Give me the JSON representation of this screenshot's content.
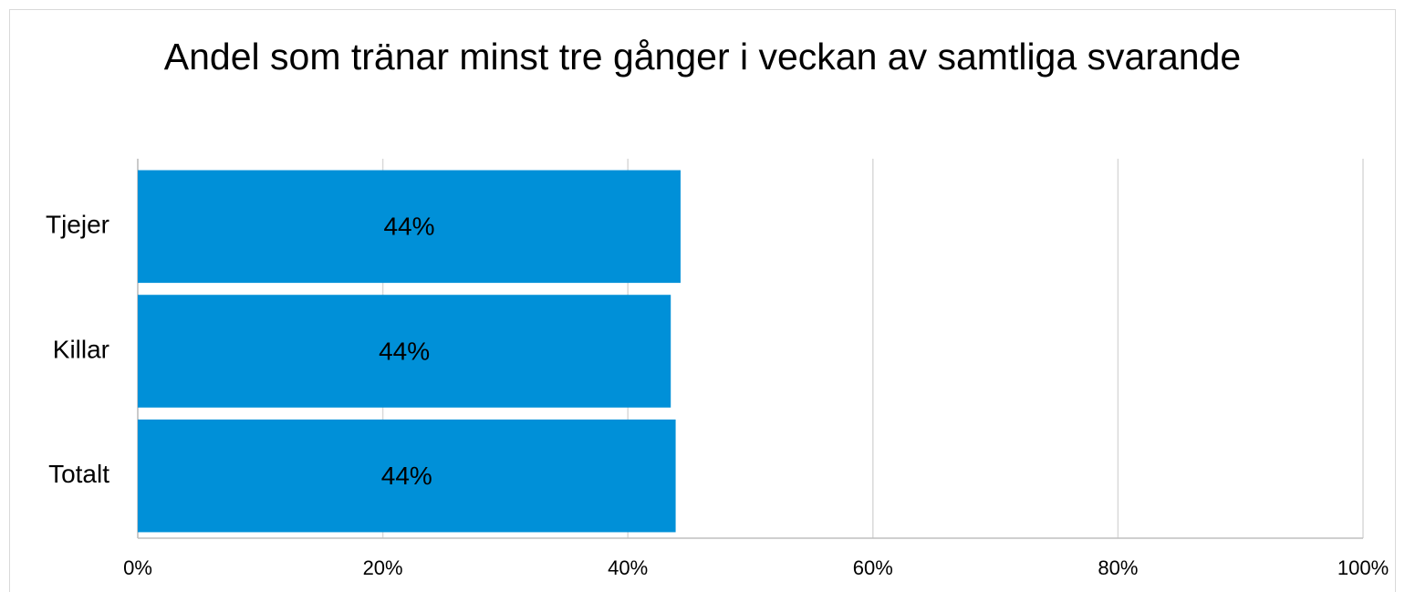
{
  "chart_data": {
    "type": "hbar",
    "title": "Andel som tränar minst tre gånger i veckan av samtliga svarande",
    "categories": [
      "Tjejer",
      "Killar",
      "Totalt"
    ],
    "values": [
      44.3,
      43.5,
      43.9
    ],
    "value_labels": [
      "44%",
      "44%",
      "44%"
    ],
    "color": "#0090d8",
    "xlim": [
      0,
      100
    ],
    "xticks": [
      {
        "value": 0,
        "label": "0%"
      },
      {
        "value": 20,
        "label": "20%"
      },
      {
        "value": 40,
        "label": "40%"
      },
      {
        "value": 60,
        "label": "60%"
      },
      {
        "value": 80,
        "label": "80%"
      },
      {
        "value": 100,
        "label": "100%"
      }
    ],
    "grid": true
  }
}
